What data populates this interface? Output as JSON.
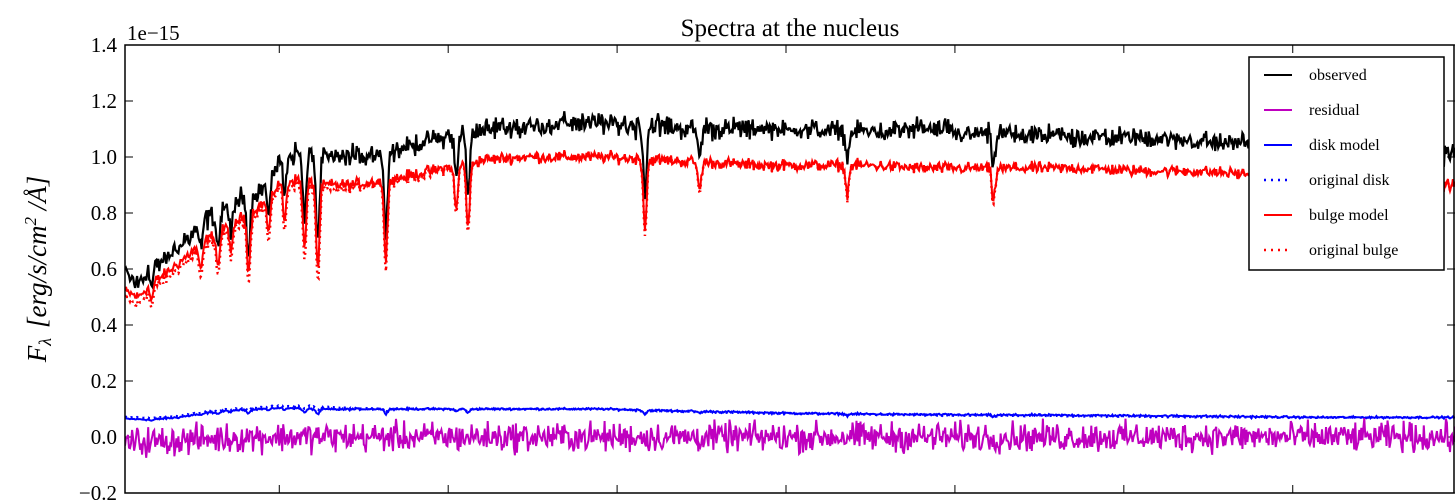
{
  "chart_data": {
    "type": "line",
    "title": "Spectra at the nucleus",
    "ylabel": "F_λ [erg/s/cm^2 /Å]",
    "ylabel_parts": {
      "symbol": "F",
      "sub": "λ",
      "units_main": "[erg/s/cm",
      "units_sup": "2",
      "units_end": " /Å]"
    },
    "y_offset_label": "1e−15",
    "ylim": [
      -0.2,
      1.4
    ],
    "yticks": [
      -0.2,
      0.0,
      0.2,
      0.4,
      0.6,
      0.8,
      1.0,
      1.2,
      1.4
    ],
    "ytick_labels": [
      "−0.2",
      "0.0",
      "0.2",
      "0.4",
      "0.6",
      "0.8",
      "1.0",
      "1.2",
      "1.4"
    ],
    "xlim": [
      0,
      1
    ],
    "xticks": [
      0.116,
      0.243,
      0.37,
      0.497,
      0.624,
      0.751,
      0.878
    ],
    "legend_position": "upper right",
    "colors": {
      "observed": "#000000",
      "residual": "#bf00bf",
      "disk model": "#0000ff",
      "original disk": "#0000ff",
      "bulge model": "#ff0000",
      "original bulge": "#ff0000"
    },
    "series": [
      {
        "name": "observed",
        "style": "solid",
        "x": [
          0.0,
          0.01,
          0.02,
          0.03,
          0.04,
          0.05,
          0.06,
          0.07,
          0.08,
          0.09,
          0.1,
          0.11,
          0.116,
          0.13,
          0.15,
          0.17,
          0.2,
          0.23,
          0.25,
          0.27,
          0.3,
          0.33,
          0.36,
          0.4,
          0.44,
          0.48,
          0.52,
          0.56,
          0.6,
          0.64,
          0.68,
          0.72,
          0.76,
          0.8,
          0.84,
          0.88,
          0.92,
          0.96,
          1.0
        ],
        "y": [
          0.58,
          0.55,
          0.6,
          0.63,
          0.68,
          0.72,
          0.78,
          0.8,
          0.82,
          0.86,
          0.88,
          0.92,
          1.0,
          1.02,
          1.0,
          1.0,
          1.02,
          1.06,
          1.08,
          1.1,
          1.11,
          1.12,
          1.12,
          1.11,
          1.1,
          1.1,
          1.1,
          1.09,
          1.1,
          1.08,
          1.08,
          1.07,
          1.07,
          1.06,
          1.05,
          1.04,
          1.03,
          1.02,
          1.02
        ]
      },
      {
        "name": "residual",
        "style": "solid",
        "x": [
          0.0,
          0.05,
          0.1,
          0.15,
          0.2,
          0.25,
          0.3,
          0.35,
          0.4,
          0.45,
          0.5,
          0.55,
          0.6,
          0.65,
          0.7,
          0.75,
          0.8,
          0.85,
          0.9,
          0.95,
          1.0
        ],
        "y": [
          -0.02,
          -0.01,
          0.0,
          0.0,
          0.0,
          0.0,
          0.0,
          0.0,
          0.0,
          0.0,
          0.0,
          0.0,
          0.0,
          0.0,
          0.0,
          0.0,
          0.0,
          0.0,
          0.0,
          0.0,
          0.0
        ]
      },
      {
        "name": "disk model",
        "style": "solid",
        "x": [
          0.0,
          0.02,
          0.04,
          0.06,
          0.08,
          0.1,
          0.12,
          0.14,
          0.16,
          0.18,
          0.2,
          0.24,
          0.28,
          0.32,
          0.36,
          0.4,
          0.5,
          0.6,
          0.7,
          0.8,
          0.9,
          1.0
        ],
        "y": [
          0.065,
          0.062,
          0.07,
          0.085,
          0.095,
          0.1,
          0.105,
          0.1,
          0.098,
          0.1,
          0.1,
          0.1,
          0.1,
          0.1,
          0.1,
          0.095,
          0.085,
          0.08,
          0.078,
          0.075,
          0.07,
          0.07
        ]
      },
      {
        "name": "original disk",
        "style": "dotted",
        "x": [
          0.0,
          0.02,
          0.04,
          0.06,
          0.08,
          0.1,
          0.12,
          0.14,
          0.16,
          0.18,
          0.2,
          0.24,
          0.28,
          0.32,
          0.36,
          0.4,
          0.5,
          0.6,
          0.7,
          0.8,
          0.9,
          1.0
        ],
        "y": [
          0.07,
          0.068,
          0.075,
          0.09,
          0.1,
          0.105,
          0.112,
          0.11,
          0.105,
          0.102,
          0.1,
          0.1,
          0.1,
          0.1,
          0.1,
          0.092,
          0.084,
          0.078,
          0.075,
          0.072,
          0.07,
          0.07
        ]
      },
      {
        "name": "bulge model",
        "style": "solid",
        "x": [
          0.0,
          0.01,
          0.02,
          0.03,
          0.04,
          0.05,
          0.06,
          0.07,
          0.08,
          0.09,
          0.1,
          0.11,
          0.116,
          0.13,
          0.15,
          0.17,
          0.2,
          0.23,
          0.25,
          0.27,
          0.3,
          0.33,
          0.36,
          0.4,
          0.44,
          0.48,
          0.52,
          0.56,
          0.6,
          0.64,
          0.68,
          0.72,
          0.76,
          0.8,
          0.84,
          0.88,
          0.92,
          0.96,
          1.0
        ],
        "y": [
          0.52,
          0.5,
          0.55,
          0.58,
          0.62,
          0.66,
          0.7,
          0.73,
          0.76,
          0.79,
          0.82,
          0.86,
          0.91,
          0.92,
          0.9,
          0.9,
          0.92,
          0.95,
          0.97,
          0.99,
          1.0,
          1.0,
          1.0,
          0.99,
          0.98,
          0.97,
          0.97,
          0.97,
          0.96,
          0.96,
          0.96,
          0.96,
          0.95,
          0.95,
          0.94,
          0.93,
          0.92,
          0.91,
          0.9
        ]
      },
      {
        "name": "original bulge",
        "style": "dotted",
        "x": [
          0.0,
          0.01,
          0.02,
          0.03,
          0.04,
          0.05,
          0.06,
          0.07,
          0.08,
          0.09,
          0.1,
          0.11,
          0.116,
          0.13,
          0.15,
          0.17,
          0.2,
          0.23,
          0.25,
          0.27,
          0.3,
          0.33,
          0.36,
          0.4,
          0.44,
          0.48,
          0.52,
          0.56,
          0.6,
          0.64,
          0.68,
          0.72,
          0.76,
          0.8,
          0.84,
          0.88,
          0.92,
          0.96,
          1.0
        ],
        "y": [
          0.5,
          0.47,
          0.53,
          0.56,
          0.6,
          0.64,
          0.68,
          0.71,
          0.74,
          0.77,
          0.8,
          0.84,
          0.89,
          0.9,
          0.88,
          0.89,
          0.91,
          0.94,
          0.97,
          0.99,
          1.0,
          1.0,
          1.0,
          0.99,
          0.98,
          0.97,
          0.97,
          0.97,
          0.96,
          0.96,
          0.96,
          0.96,
          0.95,
          0.95,
          0.94,
          0.93,
          0.92,
          0.91,
          0.9
        ]
      }
    ],
    "absorption_features": [
      {
        "x": 0.02,
        "depth": 0.06
      },
      {
        "x": 0.057,
        "depth": 0.1
      },
      {
        "x": 0.07,
        "depth": 0.12
      },
      {
        "x": 0.08,
        "depth": 0.1
      },
      {
        "x": 0.093,
        "depth": 0.2
      },
      {
        "x": 0.108,
        "depth": 0.12
      },
      {
        "x": 0.12,
        "depth": 0.14
      },
      {
        "x": 0.135,
        "depth": 0.24
      },
      {
        "x": 0.145,
        "depth": 0.3
      },
      {
        "x": 0.196,
        "depth": 0.27
      },
      {
        "x": 0.249,
        "depth": 0.16
      },
      {
        "x": 0.258,
        "depth": 0.23
      },
      {
        "x": 0.391,
        "depth": 0.24
      },
      {
        "x": 0.432,
        "depth": 0.1
      },
      {
        "x": 0.543,
        "depth": 0.1
      },
      {
        "x": 0.653,
        "depth": 0.12
      }
    ],
    "legend_entries": [
      "observed",
      "residual",
      "disk model",
      "original disk",
      "bulge model",
      "original bulge"
    ]
  }
}
